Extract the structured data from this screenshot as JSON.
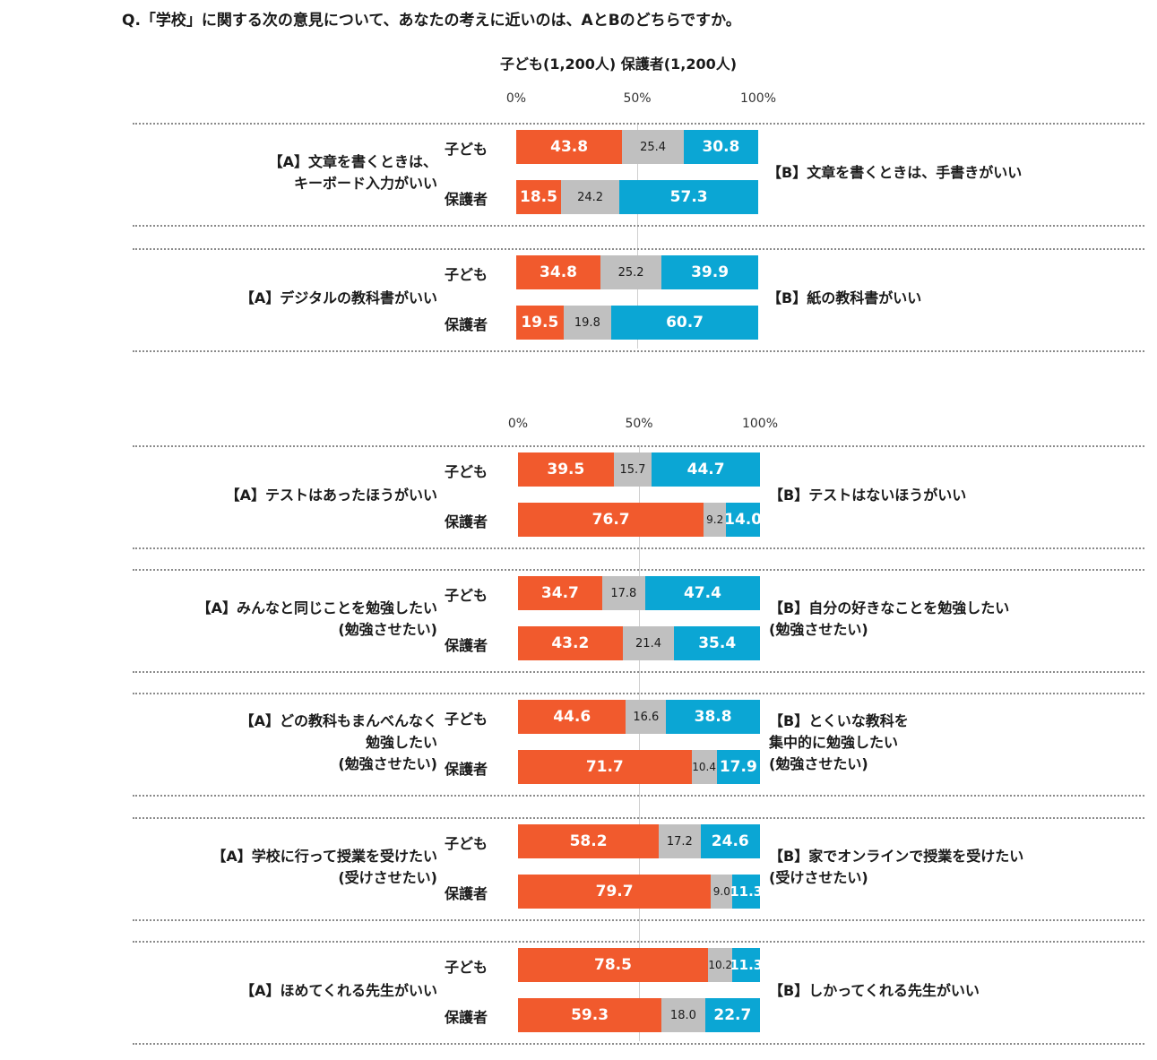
{
  "question": "Q.「学校」に関する次の意見について、あなたの考えに近いのは、AとBのどちらですか。",
  "sample_label": "子ども(1,200人) 保護者(1,200人)",
  "colors": {
    "a": "#f15a2d",
    "neutral": "#c0c0c0",
    "b": "#0ba6d4"
  },
  "chart_data": {
    "type": "bar",
    "stacked": true,
    "orientation": "horizontal",
    "xlim": [
      0,
      100
    ],
    "axis_ticks": [
      "0%",
      "50%",
      "100%"
    ],
    "groups": [
      "子ども",
      "保護者"
    ],
    "series": [
      {
        "key": "a"
      },
      {
        "key": "neutral"
      },
      {
        "key": "b"
      }
    ],
    "items": [
      {
        "a_label": [
          "【A】文章を書くときは、",
          "キーボード入力がいい"
        ],
        "b_label": [
          "【B】文章を書くときは、手書きがいい"
        ],
        "rows": [
          {
            "group": "子ども",
            "values": [
              "43.8",
              "25.4",
              "30.8"
            ]
          },
          {
            "group": "保護者",
            "values": [
              "18.5",
              "24.2",
              "57.3"
            ]
          }
        ]
      },
      {
        "a_label": [
          "【A】デジタルの教科書がいい"
        ],
        "b_label": [
          "【B】紙の教科書がいい"
        ],
        "rows": [
          {
            "group": "子ども",
            "values": [
              "34.8",
              "25.2",
              "39.9"
            ]
          },
          {
            "group": "保護者",
            "values": [
              "19.5",
              "19.8",
              "60.7"
            ]
          }
        ]
      },
      {
        "a_label": [
          "【A】テストはあったほうがいい"
        ],
        "b_label": [
          "【B】テストはないほうがいい"
        ],
        "rows": [
          {
            "group": "子ども",
            "values": [
              "39.5",
              "15.7",
              "44.7"
            ]
          },
          {
            "group": "保護者",
            "values": [
              "76.7",
              "9.2",
              "14.0"
            ]
          }
        ]
      },
      {
        "a_label": [
          "【A】みんなと同じことを勉強したい",
          "(勉強させたい)"
        ],
        "b_label": [
          "【B】自分の好きなことを勉強したい",
          "(勉強させたい)"
        ],
        "rows": [
          {
            "group": "子ども",
            "values": [
              "34.7",
              "17.8",
              "47.4"
            ]
          },
          {
            "group": "保護者",
            "values": [
              "43.2",
              "21.4",
              "35.4"
            ]
          }
        ]
      },
      {
        "a_label": [
          "【A】どの教科もまんべんなく",
          "勉強したい",
          "(勉強させたい)"
        ],
        "b_label": [
          "【B】とくいな教科を",
          "集中的に勉強したい",
          "(勉強させたい)"
        ],
        "rows": [
          {
            "group": "子ども",
            "values": [
              "44.6",
              "16.6",
              "38.8"
            ]
          },
          {
            "group": "保護者",
            "values": [
              "71.7",
              "10.4",
              "17.9"
            ]
          }
        ]
      },
      {
        "a_label": [
          "【A】学校に行って授業を受けたい",
          "(受けさせたい)"
        ],
        "b_label": [
          "【B】家でオンラインで授業を受けたい",
          "(受けさせたい)"
        ],
        "rows": [
          {
            "group": "子ども",
            "values": [
              "58.2",
              "17.2",
              "24.6"
            ]
          },
          {
            "group": "保護者",
            "values": [
              "79.7",
              "9.0",
              "11.3"
            ]
          }
        ]
      },
      {
        "a_label": [
          "【A】ほめてくれる先生がいい"
        ],
        "b_label": [
          "【B】しかってくれる先生がいい"
        ],
        "rows": [
          {
            "group": "子ども",
            "values": [
              "78.5",
              "10.2",
              "11.3"
            ]
          },
          {
            "group": "保護者",
            "values": [
              "59.3",
              "18.0",
              "22.7"
            ]
          }
        ]
      }
    ]
  }
}
